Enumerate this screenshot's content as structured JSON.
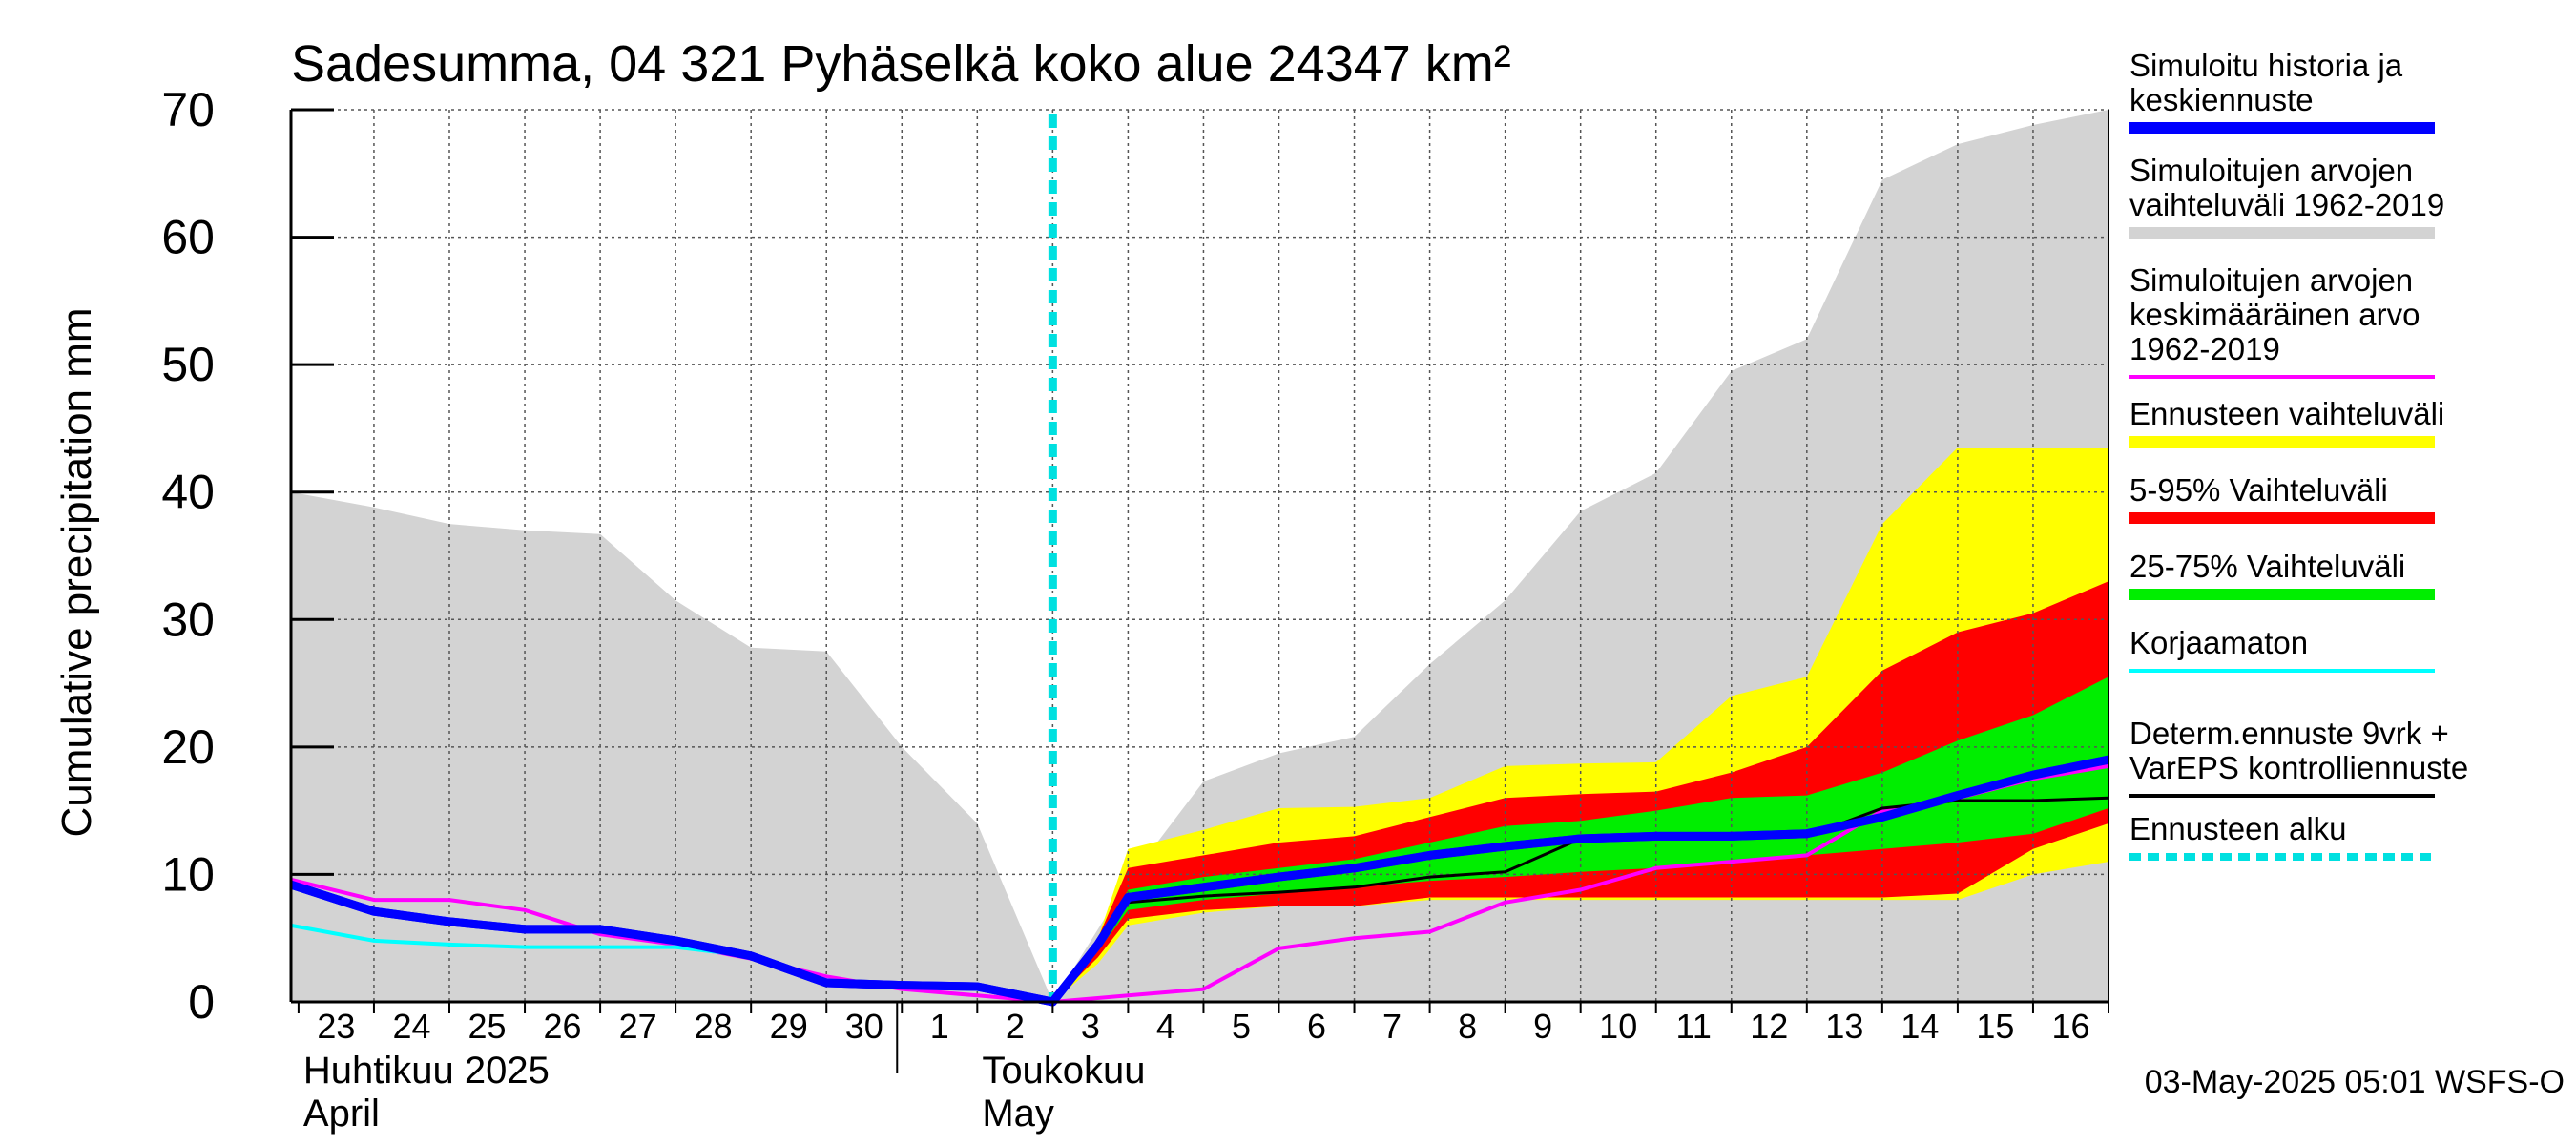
{
  "chart_data": {
    "type": "area",
    "title": "Sadesumma, 04 321 Pyhäselkä koko alue 24347 km²",
    "ylabel": "Cumulative precipitation   mm",
    "ylim": [
      0,
      70
    ],
    "yticks": [
      0,
      10,
      20,
      30,
      40,
      50,
      60,
      70
    ],
    "grid": true,
    "legend_placement": "right",
    "x_day_labels": [
      "23",
      "24",
      "25",
      "26",
      "27",
      "28",
      "29",
      "30",
      "1",
      "2",
      "3",
      "4",
      "5",
      "6",
      "7",
      "8",
      "9",
      "10",
      "11",
      "12",
      "13",
      "14",
      "15",
      "16"
    ],
    "x_day_index": [
      0,
      1,
      2,
      3,
      4,
      5,
      6,
      7,
      8,
      9,
      10,
      11,
      12,
      13,
      14,
      15,
      16,
      17,
      18,
      19,
      20,
      21,
      22,
      23
    ],
    "month_labels": [
      {
        "finnish": "Huhtikuu  2025",
        "english": "April",
        "start_index": 0
      },
      {
        "finnish": "Toukokuu",
        "english": "May",
        "start_index": 9
      }
    ],
    "forecast_start_index": 10,
    "footer": "03-May-2025 05:01 WSFS-O",
    "colors": {
      "history_range": "#d3d3d3",
      "forecast_range": "#ffff00",
      "p5_95": "#ff0000",
      "p25_75": "#00ee00",
      "simulated": "#0000ff",
      "mean": "#ff00ff",
      "uncorrected": "#00ffff",
      "determ": "#000000",
      "forecast_start": "#00e0e0"
    },
    "legend": [
      {
        "label": "Simuloitu historia ja\nkeskiennuste",
        "color": "#0000ff",
        "style": "thick"
      },
      {
        "label": "Simuloitujen arvojen\nvaihteluväli 1962-2019",
        "color": "#d3d3d3",
        "style": "thick"
      },
      {
        "label": "Simuloitujen arvojen\nkeskimääräinen arvo\n   1962-2019",
        "color": "#ff00ff",
        "style": "thin"
      },
      {
        "label": "Ennusteen vaihteluväli",
        "color": "#ffff00",
        "style": "thick"
      },
      {
        "label": "5-95% Vaihteluväli",
        "color": "#ff0000",
        "style": "thick"
      },
      {
        "label": "25-75% Vaihteluväli",
        "color": "#00ee00",
        "style": "thick"
      },
      {
        "label": "Korjaamaton",
        "color": "#00ffff",
        "style": "thin"
      },
      {
        "label": "Determ.ennuste 9vrk +\nVarEPS kontrolliennuste",
        "color": "#000000",
        "style": "thin"
      },
      {
        "label": "Ennusteen alku",
        "color": "#00e0e0",
        "style": "dashed"
      }
    ],
    "history_range": {
      "x": [
        -0.1,
        1,
        2,
        3,
        4,
        5,
        6,
        7,
        8,
        9,
        10,
        11,
        12,
        13,
        14,
        15,
        16,
        17,
        18,
        19,
        20,
        21,
        22,
        23,
        24
      ],
      "upper": [
        40,
        38.8,
        37.5,
        37,
        36.7,
        31.5,
        27.8,
        27.5,
        20,
        14,
        0,
        9.5,
        17.3,
        19.5,
        20.8,
        26.5,
        31.5,
        38.5,
        41.5,
        49.5,
        52,
        64.5,
        67.3,
        68.8,
        70
      ],
      "lower": [
        0,
        0,
        0,
        0,
        0,
        0,
        0,
        0,
        0,
        0,
        0,
        0,
        0,
        0,
        0,
        0,
        0,
        0,
        0,
        0,
        0,
        0,
        0,
        0,
        0
      ]
    },
    "forecast_range": {
      "x": [
        10,
        10.6,
        11,
        12,
        13,
        14,
        15,
        16,
        17,
        18,
        19,
        20,
        21,
        22,
        23,
        24
      ],
      "upper": [
        0,
        5,
        12,
        13.5,
        15.2,
        15.3,
        16,
        18.5,
        18.7,
        18.8,
        24,
        25.5,
        37.5,
        43.5,
        43.5,
        43.5
      ],
      "lower": [
        0,
        3,
        6,
        7,
        7.5,
        7.5,
        8,
        8,
        8,
        8,
        8,
        8,
        8,
        8,
        10,
        11
      ]
    },
    "p5_95": {
      "x": [
        10,
        10.6,
        11,
        12,
        13,
        14,
        15,
        16,
        17,
        18,
        19,
        20,
        21,
        22,
        23,
        24
      ],
      "upper": [
        0,
        5,
        10.5,
        11.5,
        12.5,
        13,
        14.5,
        16,
        16.3,
        16.5,
        18,
        20,
        26,
        29,
        30.5,
        33
      ],
      "lower": [
        0,
        3.5,
        6.5,
        7.2,
        7.5,
        7.5,
        8.2,
        8.2,
        8.2,
        8.2,
        8.2,
        8.2,
        8.2,
        8.5,
        12,
        14
      ]
    },
    "p25_75": {
      "x": [
        10,
        10.6,
        11,
        12,
        13,
        14,
        15,
        16,
        17,
        18,
        19,
        20,
        21,
        22,
        23,
        24
      ],
      "upper": [
        0,
        4.5,
        8.8,
        9.8,
        10.5,
        11.2,
        12.5,
        13.8,
        14.2,
        15,
        16,
        16.2,
        18,
        20.5,
        22.5,
        25.5
      ],
      "lower": [
        0,
        4,
        7.2,
        8,
        8.5,
        9,
        9.5,
        9.8,
        10.2,
        10.5,
        11,
        11.5,
        12,
        12.5,
        13.2,
        15.2
      ]
    },
    "series": [
      {
        "name": "Simuloitu historia ja keskiennuste",
        "color": "#0000ff",
        "width": 9,
        "x": [
          -0.1,
          1,
          2,
          3,
          4,
          5,
          6,
          7,
          8,
          9,
          10,
          10.6,
          11,
          12,
          13,
          14,
          15,
          16,
          17,
          18,
          19,
          20,
          21,
          22,
          23,
          24
        ],
        "y": [
          9.2,
          7.1,
          6.3,
          5.7,
          5.7,
          4.8,
          3.6,
          1.5,
          1.3,
          1.2,
          0,
          4.5,
          8.2,
          9,
          9.8,
          10.5,
          11.5,
          12.2,
          12.8,
          13,
          13,
          13.2,
          14.5,
          16.2,
          17.8,
          19
        ]
      },
      {
        "name": "Simuloitujen arvojen keskimääräinen arvo 1962-2019",
        "color": "#ff00ff",
        "width": 4,
        "x": [
          -0.1,
          1,
          2,
          3,
          4,
          5,
          6,
          7,
          8,
          9,
          10,
          11,
          12,
          13,
          14,
          15,
          16,
          17,
          18,
          19,
          20,
          21,
          22,
          23,
          24
        ],
        "y": [
          9.6,
          8,
          8,
          7.2,
          5.3,
          4.5,
          3.4,
          2,
          1,
          0.5,
          0,
          0.5,
          1,
          4.2,
          5,
          5.5,
          7.8,
          8.8,
          10.5,
          11,
          11.5,
          15,
          16,
          17.5,
          18.5
        ]
      },
      {
        "name": "Korjaamaton",
        "color": "#00ffff",
        "width": 4,
        "x": [
          -0.1,
          1,
          2,
          3,
          4,
          5,
          6,
          7,
          8,
          9,
          10,
          10.6,
          11,
          12,
          13,
          14,
          15,
          16,
          17,
          18,
          19,
          20,
          21,
          22,
          23,
          24
        ],
        "y": [
          6,
          4.8,
          4.5,
          4.3,
          4.3,
          4.3,
          3.6,
          1.7,
          1.3,
          1.2,
          0,
          4.5,
          8.2,
          9,
          9.8,
          10.5,
          11.5,
          12.2,
          12.8,
          13,
          13,
          13.2,
          14.5,
          16.2,
          17.8,
          19
        ]
      },
      {
        "name": "Determ.ennuste 9vrk + VarEPS kontrolliennuste",
        "color": "#000000",
        "width": 3,
        "x": [
          10,
          10.6,
          11,
          12,
          13,
          14,
          15,
          16,
          17,
          18,
          19,
          20,
          21,
          22,
          23,
          24
        ],
        "y": [
          0,
          4.2,
          7.8,
          8.3,
          8.6,
          9,
          9.8,
          10.2,
          12.8,
          13,
          13,
          13,
          15.2,
          15.8,
          15.8,
          16
        ]
      }
    ]
  }
}
